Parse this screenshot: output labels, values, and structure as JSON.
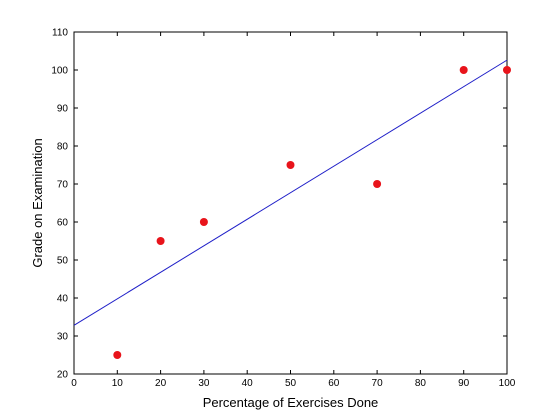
{
  "chart_data": {
    "type": "scatter",
    "title": "",
    "xlabel": "Percentage of Exercises Done",
    "ylabel": "Grade on Examination",
    "xlim": [
      0,
      100
    ],
    "ylim": [
      20,
      110
    ],
    "xticks": [
      0,
      10,
      20,
      30,
      40,
      50,
      60,
      70,
      80,
      90,
      100
    ],
    "yticks": [
      20,
      30,
      40,
      50,
      60,
      70,
      80,
      90,
      100,
      110
    ],
    "grid": false,
    "legend": "none",
    "series": [
      {
        "kind": "points",
        "color": "#e8141b",
        "points": [
          {
            "x": 10,
            "y": 25
          },
          {
            "x": 20,
            "y": 55
          },
          {
            "x": 30,
            "y": 60
          },
          {
            "x": 50,
            "y": 75
          },
          {
            "x": 70,
            "y": 70
          },
          {
            "x": 90,
            "y": 100
          },
          {
            "x": 100,
            "y": 100
          }
        ]
      },
      {
        "kind": "fit-line",
        "color": "#1f1fc8",
        "points": [
          {
            "x": 0,
            "y": 32.8
          },
          {
            "x": 100,
            "y": 102.6
          }
        ]
      }
    ]
  }
}
